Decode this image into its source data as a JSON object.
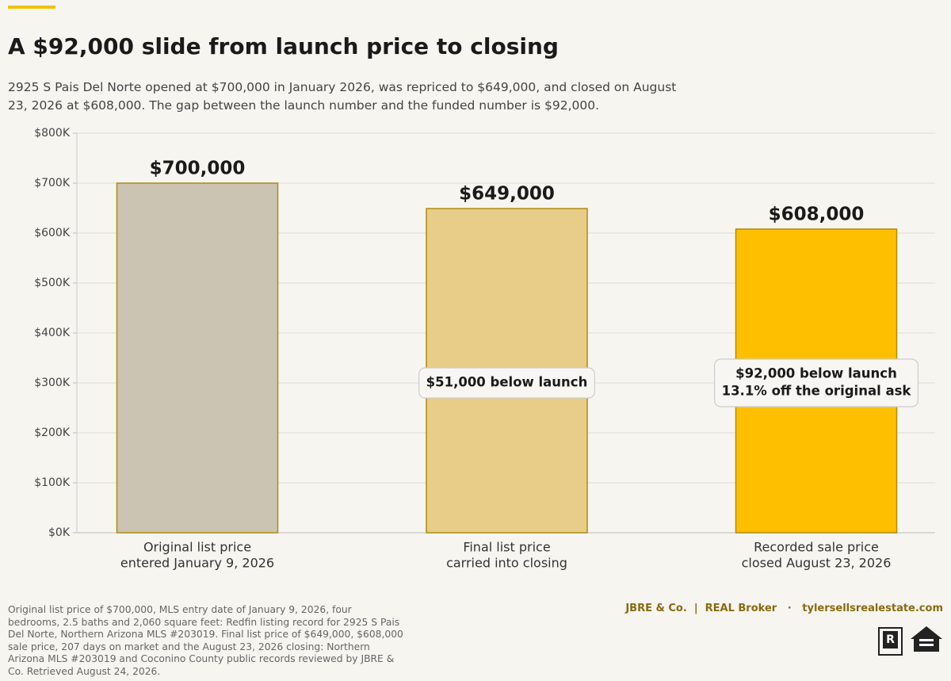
{
  "chart_data": {
    "type": "bar",
    "title": "A $92,000 slide from launch price to closing",
    "subtitle": "2925 S Pais Del Norte opened at $700,000 in January 2026, was repriced to $649,000, and closed on August 23, 2026 at $608,000. The gap between the launch number and the funded number is $92,000.",
    "categories": [
      "Original list price",
      "Final list price",
      "Recorded sale price"
    ],
    "category_details": [
      "entered January 9, 2026",
      "carried into closing",
      "closed August 23, 2026"
    ],
    "values": [
      700000,
      649000,
      608000
    ],
    "value_labels": [
      "$700,000",
      "$649,000",
      "$608,000"
    ],
    "colors": [
      "#cbc4b2",
      "#e8cd88",
      "#fdbf00"
    ],
    "edge_color": "#b08a10",
    "ylim": [
      0,
      800000
    ],
    "yticks": [
      {
        "value": 0,
        "label": "$0K"
      },
      {
        "value": 100000,
        "label": "$100K"
      },
      {
        "value": 200000,
        "label": "$200K"
      },
      {
        "value": 300000,
        "label": "$300K"
      },
      {
        "value": 400000,
        "label": "$400K"
      },
      {
        "value": 500000,
        "label": "$500K"
      },
      {
        "value": 600000,
        "label": "$600K"
      },
      {
        "value": 700000,
        "label": "$700K"
      },
      {
        "value": 800000,
        "label": "$800K"
      }
    ],
    "grid": true,
    "annotations": [
      {
        "bar": 1,
        "lines": [
          "$51,000 below launch"
        ]
      },
      {
        "bar": 2,
        "lines": [
          "$92,000 below launch",
          "13.1% off the original ask"
        ]
      }
    ],
    "source": "Original list price of $700,000, MLS entry date of January 9, 2026, four bedrooms, 2.5 baths and 2,060 square feet: Redfin listing record for 2925 S Pais Del Norte, Northern Arizona MLS #203019. Final list price of $649,000, $608,000 sale price, 207 days on market and the August 23, 2026 closing: Northern Arizona MLS #203019 and Coconino County public records reviewed by JBRE & Co. Retrieved August 24, 2026.",
    "brand": "JBRE & Co.  |  REAL Broker   ·   tylersellsrealestate.com"
  }
}
